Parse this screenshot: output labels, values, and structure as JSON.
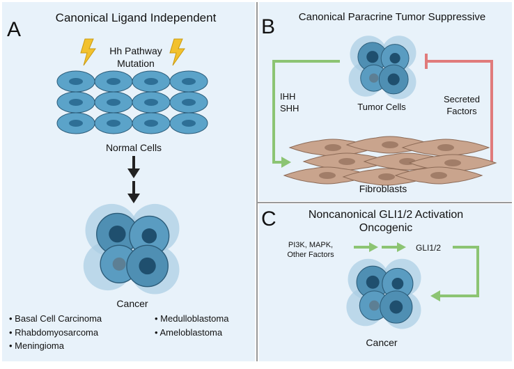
{
  "panel_a": {
    "letter": "A",
    "title": "Canonical Ligand Independent",
    "mutation_line1": "Hh Pathway",
    "mutation_line2": "Mutation",
    "normal_label": "Normal Cells",
    "cancer_label": "Cancer",
    "cancers_left": [
      "Basal Cell Carcinoma",
      "Rhabdomyosarcoma",
      "Meningioma"
    ],
    "cancers_right": [
      "Medulloblastoma",
      "Ameloblastoma"
    ]
  },
  "panel_b": {
    "letter": "B",
    "title": "Canonical Paracrine Tumor Suppressive",
    "tumor_label": "Tumor Cells",
    "ligand_line1": "IHH",
    "ligand_line2": "SHH",
    "secreted_line1": "Secreted",
    "secreted_line2": "Factors",
    "fibro_label": "Fibroblasts"
  },
  "panel_c": {
    "letter": "C",
    "title_line1": "Noncanonical GLI1/2 Activation",
    "title_line2": "Oncogenic",
    "factors_line1": "PI3K, MAPK,",
    "factors_line2": "Other Factors",
    "gli_label": "GLI1/2",
    "cancer_label": "Cancer"
  },
  "colors": {
    "panel_bg": "#e8f2fa",
    "divider": "#999999",
    "cell_fill": "#5ba3c9",
    "nucleus_fill": "#2e6f96",
    "cluster_fill": "#4f8fb3",
    "cluster_halo": "#a9cde3",
    "fibroblast_fill": "#c9a48d",
    "fibroblast_nucleus": "#a17d68",
    "lightning": "#f2c12e",
    "arrow_black": "#222222",
    "arrow_green": "#8cc473",
    "inhibit_red": "#e07b7b"
  }
}
